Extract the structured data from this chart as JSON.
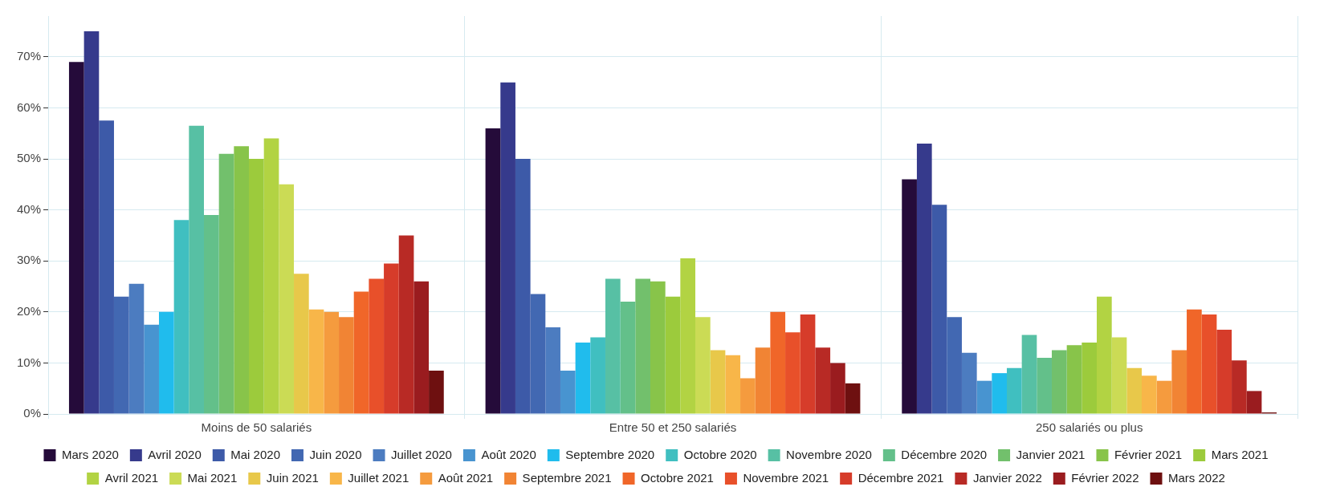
{
  "chart_data": {
    "type": "bar",
    "categories": [
      "Moins de 50 salariés",
      "Entre 50 et 250 salariés",
      "250 salariés ou plus"
    ],
    "ylim": [
      0,
      78
    ],
    "yticks": [
      {
        "value": 0,
        "label": "0%"
      },
      {
        "value": 10,
        "label": "10%"
      },
      {
        "value": 20,
        "label": "20%"
      },
      {
        "value": 30,
        "label": "30%"
      },
      {
        "value": 40,
        "label": "40%"
      },
      {
        "value": 50,
        "label": "50%"
      },
      {
        "value": 60,
        "label": "60%"
      },
      {
        "value": 70,
        "label": "70%"
      }
    ],
    "grid": true,
    "legend": "bottom",
    "series": [
      {
        "name": "Mars 2020",
        "color": "#250b3a",
        "values": [
          69,
          56,
          46
        ]
      },
      {
        "name": "Avril 2020",
        "color": "#363a8c",
        "values": [
          75,
          65,
          53
        ]
      },
      {
        "name": "Mai 2020",
        "color": "#3d5aa8",
        "values": [
          57.5,
          50,
          41
        ]
      },
      {
        "name": "Juin 2020",
        "color": "#4268b2",
        "values": [
          23,
          23.5,
          19
        ]
      },
      {
        "name": "Juillet 2020",
        "color": "#4c7cc0",
        "values": [
          25.5,
          17,
          12
        ]
      },
      {
        "name": "Août 2020",
        "color": "#4894d0",
        "values": [
          17.5,
          8.5,
          6.5
        ]
      },
      {
        "name": "Septembre 2020",
        "color": "#20bced",
        "values": [
          20,
          14,
          8
        ]
      },
      {
        "name": "Octobre 2020",
        "color": "#40bfc0",
        "values": [
          38,
          15,
          9
        ]
      },
      {
        "name": "Novembre 2020",
        "color": "#57c0a4",
        "values": [
          56.5,
          26.5,
          15.5
        ]
      },
      {
        "name": "Décembre 2020",
        "color": "#63c08a",
        "values": [
          39,
          22,
          11
        ]
      },
      {
        "name": "Janvier 2021",
        "color": "#72c06c",
        "values": [
          51,
          26.5,
          12.5
        ]
      },
      {
        "name": "Février 2021",
        "color": "#88c44a",
        "values": [
          52.5,
          26,
          13.5
        ]
      },
      {
        "name": "Mars 2021",
        "color": "#9ccb3c",
        "values": [
          50,
          23,
          14
        ]
      },
      {
        "name": "Avril 2021",
        "color": "#b2d343",
        "values": [
          54,
          30.5,
          23
        ]
      },
      {
        "name": "Mai 2021",
        "color": "#cbdb55",
        "values": [
          45,
          19,
          15
        ]
      },
      {
        "name": "Juin 2021",
        "color": "#e8c84a",
        "values": [
          27.5,
          12.5,
          9
        ]
      },
      {
        "name": "Juillet 2021",
        "color": "#f8b649",
        "values": [
          20.5,
          11.5,
          7.5
        ]
      },
      {
        "name": "Août 2021",
        "color": "#f59b3e",
        "values": [
          20,
          7,
          6.5
        ]
      },
      {
        "name": "Septembre 2021",
        "color": "#f18434",
        "values": [
          19,
          13,
          12.5
        ]
      },
      {
        "name": "Octobre 2021",
        "color": "#f06629",
        "values": [
          24,
          20,
          20.5
        ]
      },
      {
        "name": "Novembre 2021",
        "color": "#e8502a",
        "values": [
          26.5,
          16,
          19.5
        ]
      },
      {
        "name": "Décembre 2021",
        "color": "#d63c2a",
        "values": [
          29.5,
          19.5,
          16.5
        ]
      },
      {
        "name": "Janvier 2022",
        "color": "#b82a25",
        "values": [
          35,
          13,
          10.5
        ]
      },
      {
        "name": "Février 2022",
        "color": "#9a1c1f",
        "values": [
          26,
          10,
          4.5
        ]
      },
      {
        "name": "Mars 2022",
        "color": "#6e1010",
        "values": [
          8.5,
          6,
          0.3
        ]
      }
    ]
  }
}
